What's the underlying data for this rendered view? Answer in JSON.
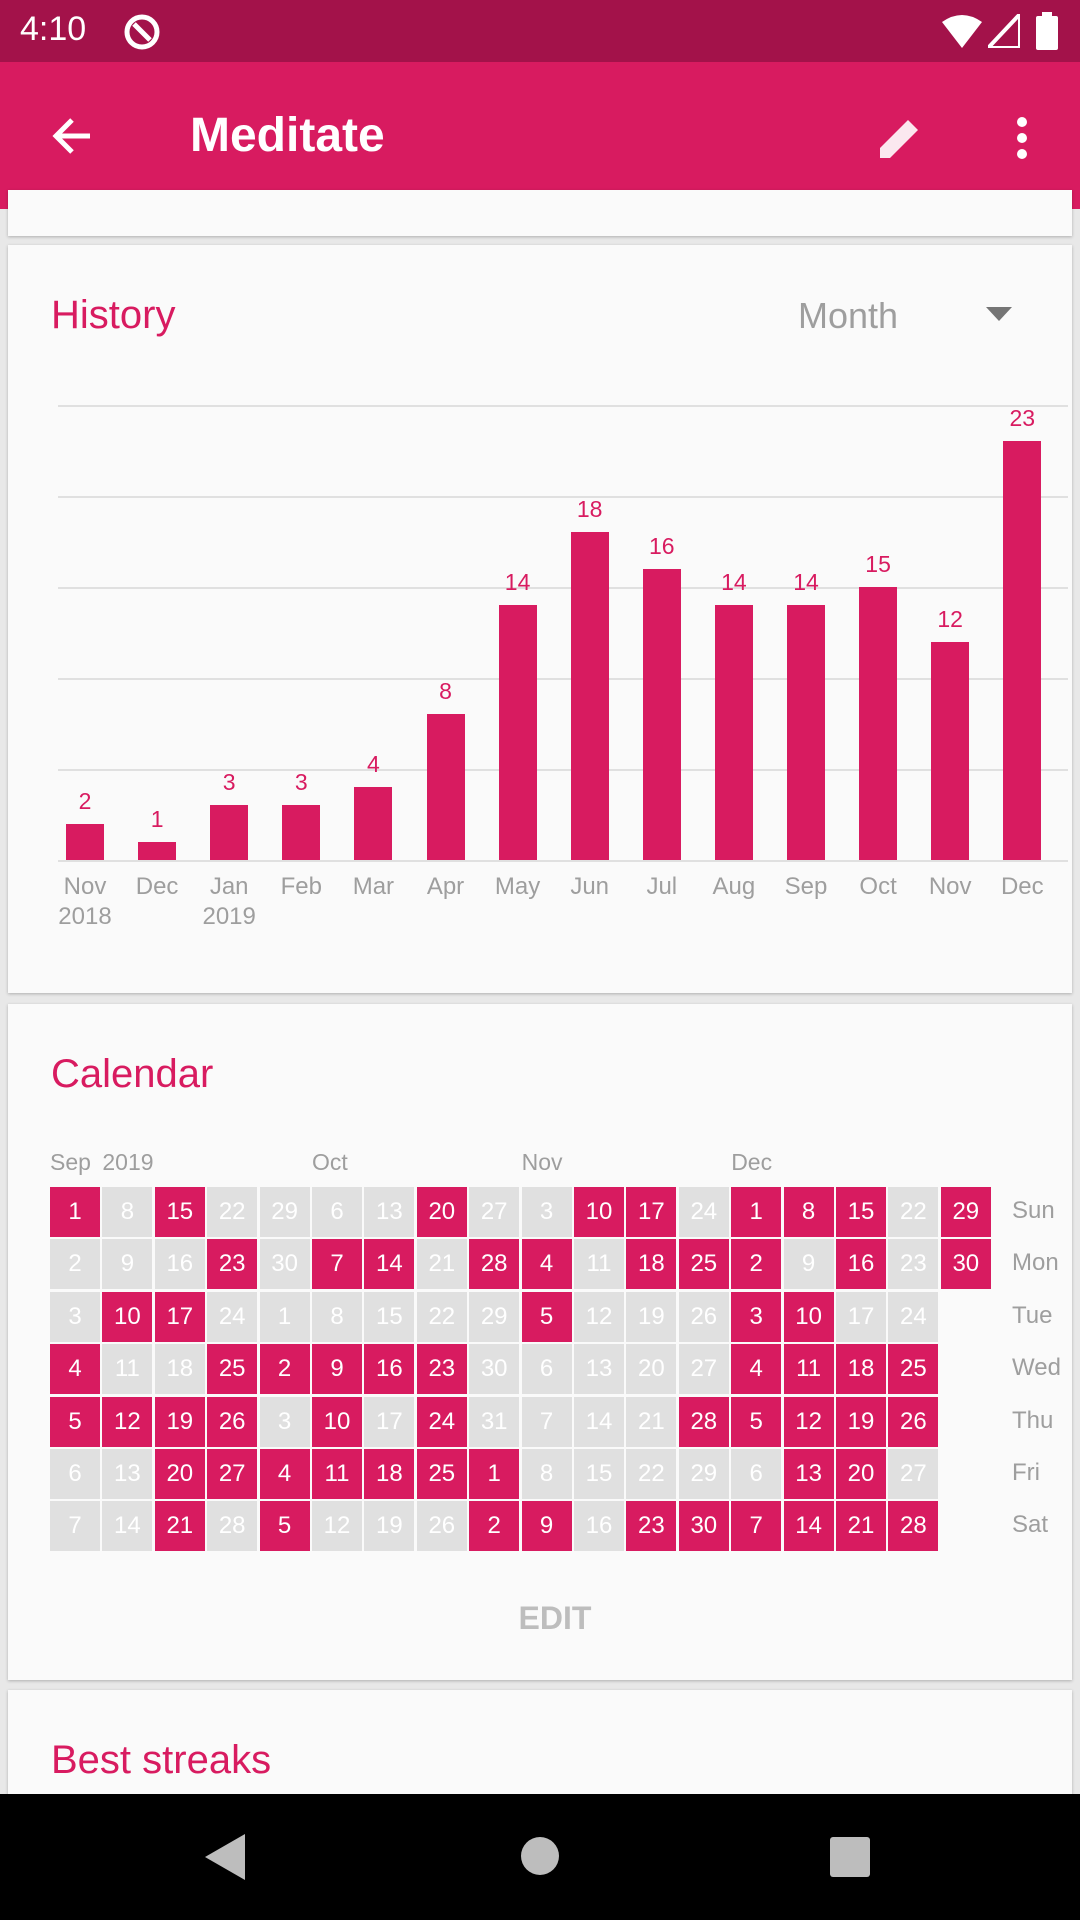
{
  "status_bar": {
    "time": "4:10"
  },
  "toolbar": {
    "title": "Meditate",
    "back_icon": "arrow-back-icon",
    "edit_icon": "pencil-icon",
    "menu_icon": "more-vert-icon"
  },
  "colors": {
    "accent": "#D81B60",
    "status_bar": "#A3124A",
    "inactive_cell": "#E0E0E0"
  },
  "history": {
    "title": "History",
    "period_select": "Month"
  },
  "chart_data": {
    "type": "bar",
    "ylim": [
      0,
      25
    ],
    "grid": true,
    "categories": [
      [
        "Nov",
        "2018"
      ],
      [
        "Dec",
        ""
      ],
      [
        "Jan",
        "2019"
      ],
      [
        "Feb",
        ""
      ],
      [
        "Mar",
        ""
      ],
      [
        "Apr",
        ""
      ],
      [
        "May",
        ""
      ],
      [
        "Jun",
        ""
      ],
      [
        "Jul",
        ""
      ],
      [
        "Aug",
        ""
      ],
      [
        "Sep",
        ""
      ],
      [
        "Oct",
        ""
      ],
      [
        "Nov",
        ""
      ],
      [
        "Dec",
        ""
      ]
    ],
    "values": [
      2,
      1,
      3,
      3,
      4,
      8,
      14,
      18,
      16,
      14,
      14,
      15,
      12,
      23
    ]
  },
  "calendar": {
    "title": "Calendar",
    "edit_label": "EDIT",
    "month_labels": [
      {
        "col": 0,
        "text": "Sep"
      },
      {
        "col": 1,
        "text": "2019"
      },
      {
        "col": 5,
        "text": "Oct"
      },
      {
        "col": 9,
        "text": "Nov"
      },
      {
        "col": 13,
        "text": "Dec"
      }
    ],
    "weekdays": [
      "Sun",
      "Mon",
      "Tue",
      "Wed",
      "Thu",
      "Fri",
      "Sat"
    ],
    "columns": [
      [
        [
          1,
          1
        ],
        [
          2,
          0
        ],
        [
          3,
          0
        ],
        [
          4,
          1
        ],
        [
          5,
          1
        ],
        [
          6,
          0
        ],
        [
          7,
          0
        ]
      ],
      [
        [
          8,
          0
        ],
        [
          9,
          0
        ],
        [
          10,
          1
        ],
        [
          11,
          0
        ],
        [
          12,
          1
        ],
        [
          13,
          0
        ],
        [
          14,
          0
        ]
      ],
      [
        [
          15,
          1
        ],
        [
          16,
          0
        ],
        [
          17,
          1
        ],
        [
          18,
          0
        ],
        [
          19,
          1
        ],
        [
          20,
          1
        ],
        [
          21,
          1
        ]
      ],
      [
        [
          22,
          0
        ],
        [
          23,
          1
        ],
        [
          24,
          0
        ],
        [
          25,
          1
        ],
        [
          26,
          1
        ],
        [
          27,
          1
        ],
        [
          28,
          0
        ]
      ],
      [
        [
          29,
          0
        ],
        [
          30,
          0
        ],
        [
          1,
          0
        ],
        [
          2,
          1
        ],
        [
          3,
          0
        ],
        [
          4,
          1
        ],
        [
          5,
          1
        ]
      ],
      [
        [
          6,
          0
        ],
        [
          7,
          1
        ],
        [
          8,
          0
        ],
        [
          9,
          1
        ],
        [
          10,
          1
        ],
        [
          11,
          1
        ],
        [
          12,
          0
        ]
      ],
      [
        [
          13,
          0
        ],
        [
          14,
          1
        ],
        [
          15,
          0
        ],
        [
          16,
          1
        ],
        [
          17,
          0
        ],
        [
          18,
          1
        ],
        [
          19,
          0
        ]
      ],
      [
        [
          20,
          1
        ],
        [
          21,
          0
        ],
        [
          22,
          0
        ],
        [
          23,
          1
        ],
        [
          24,
          1
        ],
        [
          25,
          1
        ],
        [
          26,
          0
        ]
      ],
      [
        [
          27,
          0
        ],
        [
          28,
          1
        ],
        [
          29,
          0
        ],
        [
          30,
          0
        ],
        [
          31,
          0
        ],
        [
          1,
          1
        ],
        [
          2,
          1
        ]
      ],
      [
        [
          3,
          0
        ],
        [
          4,
          1
        ],
        [
          5,
          1
        ],
        [
          6,
          0
        ],
        [
          7,
          0
        ],
        [
          8,
          0
        ],
        [
          9,
          1
        ]
      ],
      [
        [
          10,
          1
        ],
        [
          11,
          0
        ],
        [
          12,
          0
        ],
        [
          13,
          0
        ],
        [
          14,
          0
        ],
        [
          15,
          0
        ],
        [
          16,
          0
        ]
      ],
      [
        [
          17,
          1
        ],
        [
          18,
          1
        ],
        [
          19,
          0
        ],
        [
          20,
          0
        ],
        [
          21,
          0
        ],
        [
          22,
          0
        ],
        [
          23,
          1
        ]
      ],
      [
        [
          24,
          0
        ],
        [
          25,
          1
        ],
        [
          26,
          0
        ],
        [
          27,
          0
        ],
        [
          28,
          1
        ],
        [
          29,
          0
        ],
        [
          30,
          1
        ]
      ],
      [
        [
          1,
          1
        ],
        [
          2,
          1
        ],
        [
          3,
          1
        ],
        [
          4,
          1
        ],
        [
          5,
          1
        ],
        [
          6,
          0
        ],
        [
          7,
          1
        ]
      ],
      [
        [
          8,
          1
        ],
        [
          9,
          0
        ],
        [
          10,
          1
        ],
        [
          11,
          1
        ],
        [
          12,
          1
        ],
        [
          13,
          1
        ],
        [
          14,
          1
        ]
      ],
      [
        [
          15,
          1
        ],
        [
          16,
          1
        ],
        [
          17,
          0
        ],
        [
          18,
          1
        ],
        [
          19,
          1
        ],
        [
          20,
          1
        ],
        [
          21,
          1
        ]
      ],
      [
        [
          22,
          0
        ],
        [
          23,
          0
        ],
        [
          24,
          0
        ],
        [
          25,
          1
        ],
        [
          26,
          1
        ],
        [
          27,
          0
        ],
        [
          28,
          1
        ]
      ],
      [
        [
          29,
          1
        ],
        [
          30,
          1
        ]
      ]
    ]
  },
  "streaks": {
    "title": "Best streaks"
  }
}
